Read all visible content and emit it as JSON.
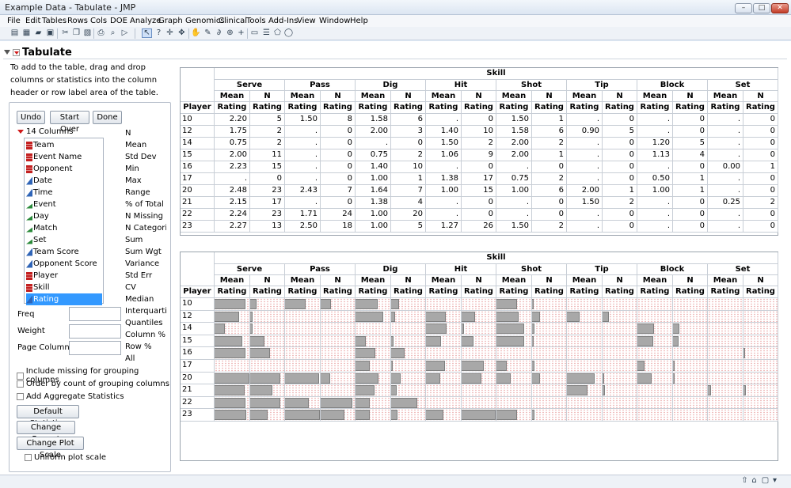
{
  "window": {
    "title": "Example Data - Tabulate - JMP"
  },
  "menu": [
    "File",
    "Edit",
    "Tables",
    "Rows",
    "Cols",
    "DOE",
    "Analyze",
    "Graph",
    "Genomics",
    "Clinical",
    "Tools",
    "Add-Ins",
    "View",
    "Window",
    "Help"
  ],
  "platform": {
    "title": "Tabulate",
    "instructions": "To add to the table, drag and drop columns or statistics into the column header or row label area of the table."
  },
  "buttons": {
    "undo": "Undo",
    "start_over": "Start Over",
    "done": "Done",
    "default_statistics": "Default Statistics",
    "change_format": "Change Format",
    "change_plot_scale": "Change Plot Scale"
  },
  "columns_header": "14 Columns",
  "columns": [
    {
      "name": "Team",
      "type": "nominal"
    },
    {
      "name": "Event Name",
      "type": "nominal"
    },
    {
      "name": "Opponent",
      "type": "nominal"
    },
    {
      "name": "Date",
      "type": "continuous"
    },
    {
      "name": "Time",
      "type": "continuous"
    },
    {
      "name": "Event",
      "type": "ordinal"
    },
    {
      "name": "Day",
      "type": "ordinal"
    },
    {
      "name": "Match",
      "type": "ordinal"
    },
    {
      "name": "Set",
      "type": "ordinal"
    },
    {
      "name": "Team Score",
      "type": "continuous"
    },
    {
      "name": "Opponent Score",
      "type": "continuous"
    },
    {
      "name": "Player",
      "type": "nominal"
    },
    {
      "name": "Skill",
      "type": "nominal"
    },
    {
      "name": "Rating",
      "type": "continuous",
      "selected": true
    }
  ],
  "statistics": [
    "N",
    "Mean",
    "Std Dev",
    "Min",
    "Max",
    "Range",
    "% of Total",
    "N Missing",
    "N Categori",
    "Sum",
    "Sum Wgt",
    "Variance",
    "Std Err",
    "CV",
    "Median",
    "Interquarti",
    "Quantiles",
    "Column %",
    "Row %",
    "All"
  ],
  "fields": {
    "freq": "Freq",
    "weight": "Weight",
    "page_column": "Page Column"
  },
  "options": {
    "include_missing": "Include missing for grouping columns",
    "order_by_count": "Order by count of grouping columns",
    "add_aggregate": "Add Aggregate Statistics",
    "uniform_plot_scale": "Uniform plot scale"
  },
  "table": {
    "super_header": "Skill",
    "row_header": "Player",
    "skills": [
      "Serve",
      "Pass",
      "Dig",
      "Hit",
      "Shot",
      "Tip",
      "Block",
      "Set"
    ],
    "stats": [
      "Mean",
      "N"
    ],
    "analysis_var": "Rating",
    "players": [
      "10",
      "12",
      "14",
      "15",
      "16",
      "17",
      "20",
      "21",
      "22",
      "23"
    ],
    "rows": [
      [
        "2.20",
        "5",
        "1.50",
        "8",
        "1.58",
        "6",
        ".",
        "0",
        "1.50",
        "1",
        ".",
        "0",
        ".",
        "0",
        ".",
        "0"
      ],
      [
        "1.75",
        "2",
        ".",
        "0",
        "2.00",
        "3",
        "1.40",
        "10",
        "1.58",
        "6",
        "0.90",
        "5",
        ".",
        "0",
        ".",
        "0"
      ],
      [
        "0.75",
        "2",
        ".",
        "0",
        ".",
        "0",
        "1.50",
        "2",
        "2.00",
        "2",
        ".",
        "0",
        "1.20",
        "5",
        ".",
        "0"
      ],
      [
        "2.00",
        "11",
        ".",
        "0",
        "0.75",
        "2",
        "1.06",
        "9",
        "2.00",
        "1",
        ".",
        "0",
        "1.13",
        "4",
        ".",
        "0"
      ],
      [
        "2.23",
        "15",
        ".",
        "0",
        "1.40",
        "10",
        ".",
        "0",
        ".",
        "0",
        ".",
        "0",
        ".",
        "0",
        "0.00",
        "1"
      ],
      [
        ".",
        "0",
        ".",
        "0",
        "1.00",
        "1",
        "1.38",
        "17",
        "0.75",
        "2",
        ".",
        "0",
        "0.50",
        "1",
        ".",
        "0"
      ],
      [
        "2.48",
        "23",
        "2.43",
        "7",
        "1.64",
        "7",
        "1.00",
        "15",
        "1.00",
        "6",
        "2.00",
        "1",
        "1.00",
        "1",
        ".",
        "0"
      ],
      [
        "2.15",
        "17",
        ".",
        "0",
        "1.38",
        "4",
        ".",
        "0",
        ".",
        "0",
        "1.50",
        "2",
        ".",
        "0",
        "0.25",
        "2"
      ],
      [
        "2.24",
        "23",
        "1.71",
        "24",
        "1.00",
        "20",
        ".",
        "0",
        ".",
        "0",
        ".",
        "0",
        ".",
        "0",
        ".",
        "0"
      ],
      [
        "2.27",
        "13",
        "2.50",
        "18",
        "1.00",
        "5",
        "1.27",
        "26",
        "1.50",
        "2",
        ".",
        "0",
        ".",
        "0",
        ".",
        "0"
      ]
    ]
  }
}
